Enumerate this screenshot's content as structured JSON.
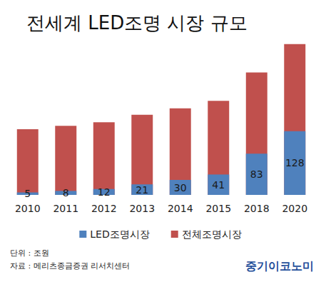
{
  "chart_data": {
    "type": "bar",
    "title": "전세계 LED조명 시장 규모",
    "categories": [
      "2010",
      "2011",
      "2012",
      "2013",
      "2014",
      "2015",
      "2018",
      "2020"
    ],
    "series": [
      {
        "name": "LED조명시장",
        "color": "#4f81bd",
        "data_labels": true,
        "values": [
          5,
          8,
          12,
          21,
          30,
          41,
          83,
          128
        ]
      },
      {
        "name": "전체조명시장",
        "color": "#c0504d",
        "data_labels": false,
        "values": [
          132,
          139,
          146,
          161,
          174,
          189,
          246,
          303
        ]
      }
    ],
    "stacked": false,
    "ylim": [
      0,
      320
    ],
    "tick_labels": "x",
    "grid": false,
    "legend": "bottom",
    "annotations": [
      "단위 : 조원",
      "자료 : 메리츠종금증권 리서치센터",
      "중기이코노미"
    ]
  }
}
